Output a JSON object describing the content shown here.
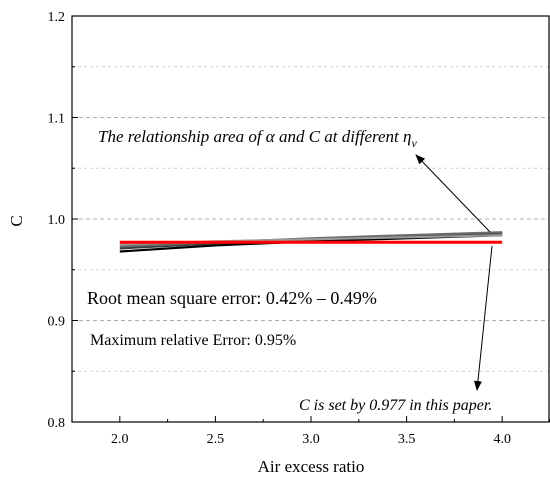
{
  "chart_data": {
    "type": "line",
    "xlabel": "Air excess ratio",
    "ylabel": "C",
    "xlim": [
      1.75,
      4.25
    ],
    "ylim": [
      0.8,
      1.2
    ],
    "xticks": [
      2.0,
      2.5,
      3.0,
      3.5,
      4.0
    ],
    "xtick_labels": [
      "2.0",
      "2.5",
      "3.0",
      "3.5",
      "4.0"
    ],
    "yticks": [
      0.8,
      0.9,
      1.0,
      1.1,
      1.2
    ],
    "ytick_labels": [
      "0.8",
      "0.9",
      "1.0",
      "1.1",
      "1.2"
    ],
    "grid": "horizontal dashed (major and minor)",
    "series": [
      {
        "color": "#000000",
        "x": [
          2.0,
          2.5,
          3.0,
          3.5,
          4.0
        ],
        "y": [
          0.968,
          0.974,
          0.978,
          0.981,
          0.984
        ]
      },
      {
        "color": "#3a3a3a",
        "x": [
          2.0,
          2.5,
          3.0,
          3.5,
          4.0
        ],
        "y": [
          0.971,
          0.976,
          0.98,
          0.983,
          0.986
        ]
      },
      {
        "color": "#6a6a6a",
        "x": [
          2.0,
          2.5,
          3.0,
          3.5,
          4.0
        ],
        "y": [
          0.973,
          0.977,
          0.981,
          0.984,
          0.987
        ]
      },
      {
        "color": "#9a9a9a",
        "x": [
          2.0,
          2.5,
          3.0,
          3.5,
          4.0
        ],
        "y": [
          0.975,
          0.978,
          0.98,
          0.982,
          0.984
        ]
      },
      {
        "color": "#ff0000",
        "x": [
          2.0,
          4.0
        ],
        "y": [
          0.977,
          0.977
        ]
      }
    ],
    "annotations": {
      "region_label": "The relationship area of α and C at different η",
      "region_label_subscript": "v",
      "rmse_text": "Root mean square error: 0.42% – 0.49%",
      "max_error_text": "Maximum relative Error: 0.95%",
      "constant_text": "C is set by 0.977 in this paper."
    }
  }
}
